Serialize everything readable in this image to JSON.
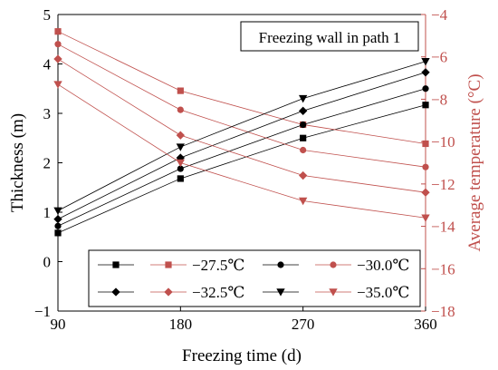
{
  "chart_data": {
    "type": "line",
    "title": "Freezing wall in path 1",
    "xlabel": "Freezing time (d)",
    "ylabel_left": "Thickness (m)",
    "ylabel_right": "Average temperature (°C)",
    "x": [
      90,
      180,
      270,
      360
    ],
    "xlim": [
      90,
      360
    ],
    "xticks": [
      90,
      180,
      270,
      360
    ],
    "ylim_left": [
      -1,
      5
    ],
    "yticks_left": [
      -1,
      0,
      1,
      2,
      3,
      4,
      5
    ],
    "ylim_right": [
      -18,
      -4
    ],
    "yticks_right": [
      -18,
      -16,
      -14,
      -12,
      -10,
      -8,
      -6,
      -4
    ],
    "legend_position": "lower-center",
    "colors": {
      "thickness": "#000000",
      "temperature": "#c0504d",
      "right_axis": "#c0504d"
    },
    "series": [
      {
        "name": "−27.5℃",
        "marker": "square",
        "thickness": [
          0.58,
          1.68,
          2.5,
          3.17
        ],
        "temperature": [
          -4.8,
          -7.6,
          -9.2,
          -10.1
        ]
      },
      {
        "name": "−30.0℃",
        "marker": "circle",
        "thickness": [
          0.72,
          1.88,
          2.77,
          3.5
        ],
        "temperature": [
          -5.4,
          -8.5,
          -10.4,
          -11.2
        ]
      },
      {
        "name": "−32.5℃",
        "marker": "diamond",
        "thickness": [
          0.86,
          2.1,
          3.05,
          3.83
        ],
        "temperature": [
          -6.1,
          -9.7,
          -11.6,
          -12.4
        ]
      },
      {
        "name": "−35.0℃",
        "marker": "triangle-down",
        "thickness": [
          1.03,
          2.32,
          3.3,
          4.05
        ],
        "temperature": [
          -7.3,
          -11.0,
          -12.8,
          -13.6
        ]
      }
    ]
  }
}
